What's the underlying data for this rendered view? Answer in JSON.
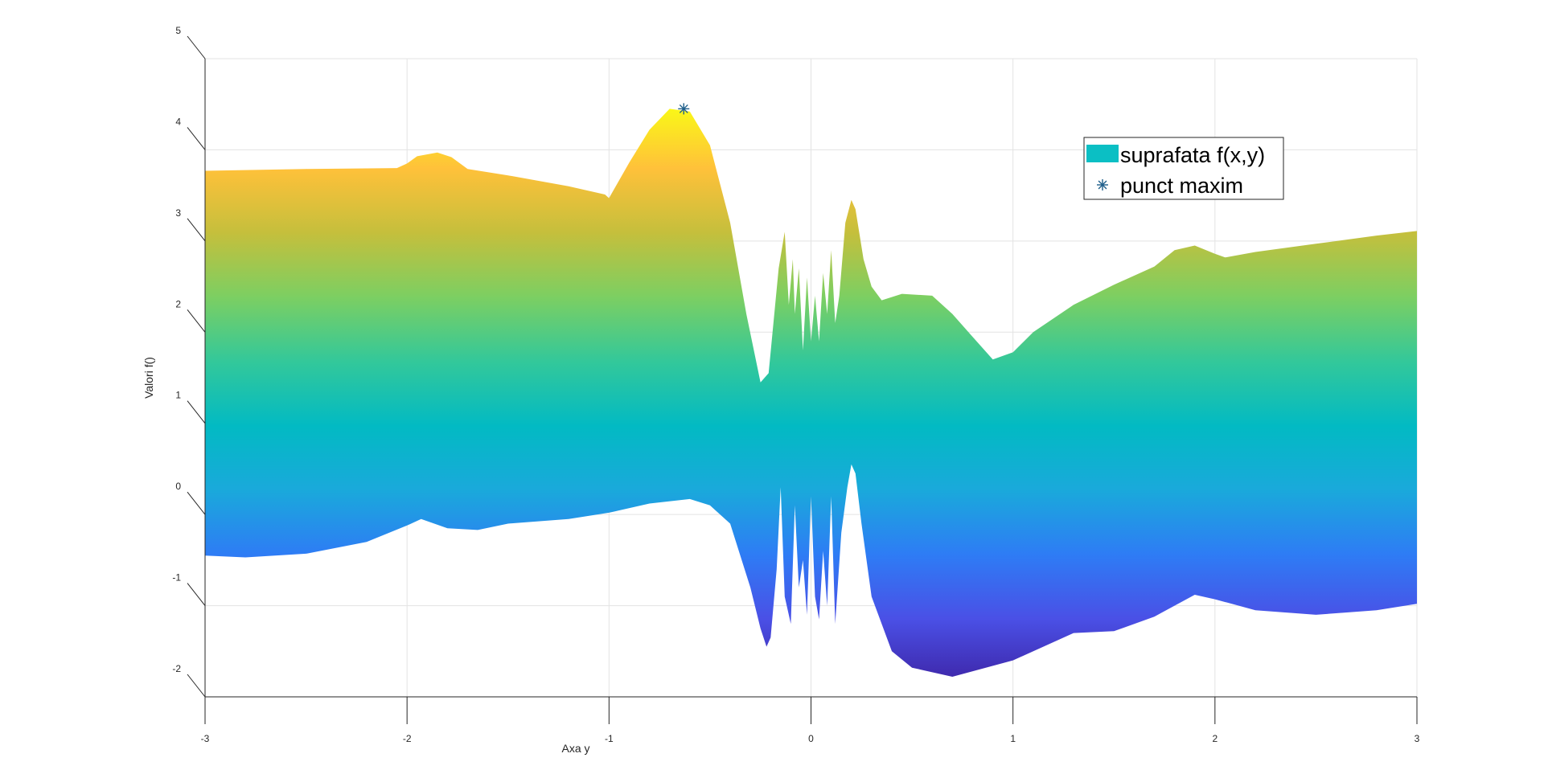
{
  "chart_data": {
    "type": "area",
    "xlabel": "Axa y",
    "ylabel": "Valori f()",
    "xlim": [
      -3,
      3
    ],
    "ylim": [
      -2,
      5
    ],
    "x_ticks": [
      "-3",
      "-2",
      "-1",
      "0",
      "1",
      "2",
      "3"
    ],
    "y_ticks": [
      "-2",
      "-1",
      "0",
      "1",
      "2",
      "3",
      "4",
      "5"
    ],
    "grid": true,
    "legend_position": "top-right",
    "colormap": [
      "#3e26a8",
      "#4a50e6",
      "#2e7cf5",
      "#1aa9db",
      "#02bac3",
      "#33c89a",
      "#7ccf62",
      "#c5bf3c",
      "#ffc13a",
      "#f9fb15"
    ],
    "upper_envelope": {
      "x": [
        -3.0,
        -2.5,
        -2.05,
        -2.0,
        -1.95,
        -1.85,
        -1.78,
        -1.7,
        -1.5,
        -1.2,
        -1.02,
        -1.0,
        -0.9,
        -0.8,
        -0.7,
        -0.6,
        -0.5,
        -0.4,
        -0.32,
        -0.25,
        -0.21,
        -0.16,
        -0.13,
        -0.11,
        -0.09,
        -0.08,
        -0.06,
        -0.04,
        -0.02,
        0.0,
        0.02,
        0.04,
        0.06,
        0.08,
        0.1,
        0.12,
        0.14,
        0.17,
        0.2,
        0.22,
        0.26,
        0.3,
        0.35,
        0.45,
        0.6,
        0.7,
        0.8,
        0.9,
        1.0,
        1.1,
        1.3,
        1.5,
        1.7,
        1.8,
        1.9,
        2.0,
        2.05,
        2.2,
        2.5,
        2.8,
        3.0
      ],
      "y": [
        3.77,
        3.79,
        3.8,
        3.85,
        3.93,
        3.97,
        3.92,
        3.79,
        3.72,
        3.6,
        3.51,
        3.47,
        3.86,
        4.22,
        4.45,
        4.42,
        4.05,
        3.2,
        2.2,
        1.45,
        1.55,
        2.7,
        3.1,
        2.3,
        2.8,
        2.2,
        2.7,
        1.8,
        2.6,
        1.9,
        2.4,
        1.9,
        2.65,
        2.2,
        2.9,
        2.1,
        2.4,
        3.2,
        3.45,
        3.35,
        2.8,
        2.5,
        2.35,
        2.42,
        2.4,
        2.2,
        1.95,
        1.7,
        1.78,
        2.0,
        2.3,
        2.52,
        2.72,
        2.9,
        2.95,
        2.86,
        2.82,
        2.88,
        2.97,
        3.06,
        3.11
      ]
    },
    "lower_envelope": {
      "x": [
        -3.0,
        -2.8,
        -2.5,
        -2.2,
        -2.0,
        -1.93,
        -1.8,
        -1.65,
        -1.5,
        -1.2,
        -1.0,
        -0.8,
        -0.6,
        -0.5,
        -0.4,
        -0.3,
        -0.25,
        -0.22,
        -0.2,
        -0.17,
        -0.15,
        -0.13,
        -0.1,
        -0.08,
        -0.06,
        -0.04,
        -0.02,
        0.0,
        0.02,
        0.04,
        0.06,
        0.08,
        0.1,
        0.12,
        0.15,
        0.18,
        0.2,
        0.22,
        0.25,
        0.3,
        0.4,
        0.5,
        0.7,
        1.0,
        1.3,
        1.5,
        1.7,
        1.9,
        2.0,
        2.2,
        2.5,
        2.8,
        3.0
      ],
      "y": [
        -0.45,
        -0.47,
        -0.43,
        -0.3,
        -0.12,
        -0.05,
        -0.15,
        -0.17,
        -0.1,
        -0.05,
        0.02,
        0.12,
        0.17,
        0.1,
        -0.1,
        -0.8,
        -1.25,
        -1.45,
        -1.35,
        -0.6,
        0.3,
        -0.9,
        -1.2,
        0.1,
        -0.8,
        -0.5,
        -1.1,
        0.2,
        -0.9,
        -1.15,
        -0.4,
        -1.0,
        0.2,
        -1.2,
        -0.2,
        0.3,
        0.55,
        0.45,
        -0.1,
        -0.9,
        -1.5,
        -1.68,
        -1.78,
        -1.6,
        -1.3,
        -1.28,
        -1.12,
        -0.88,
        -0.93,
        -1.05,
        -1.1,
        -1.05,
        -0.98
      ]
    },
    "series": [
      {
        "name": "suprafata f(x,y)",
        "type": "surface",
        "color": "#0bbfc4"
      },
      {
        "name": "punct maxim",
        "type": "marker",
        "marker": "asterisk",
        "color": "#1f5f8b",
        "x": -0.63,
        "y": 4.45
      }
    ]
  }
}
